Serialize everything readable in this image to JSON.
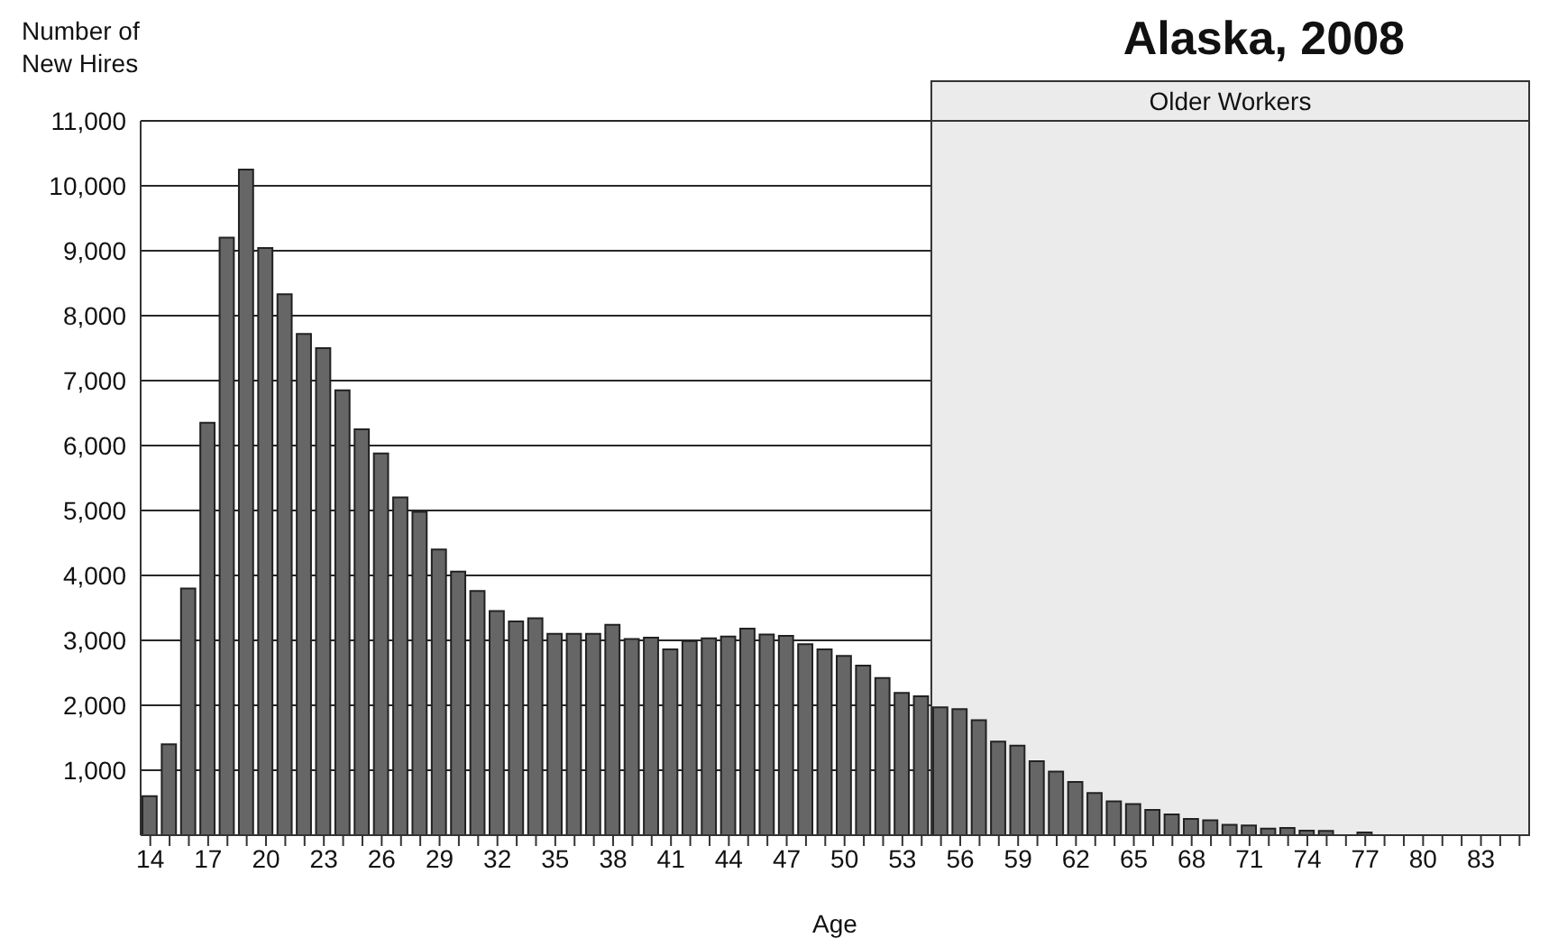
{
  "chart_data": {
    "type": "bar",
    "title": "Alaska, 2008",
    "ylabel": "Number of New Hires",
    "xlabel": "Age",
    "x": [
      14,
      15,
      16,
      17,
      18,
      19,
      20,
      21,
      22,
      23,
      24,
      25,
      26,
      27,
      28,
      29,
      30,
      31,
      32,
      33,
      34,
      35,
      36,
      37,
      38,
      39,
      40,
      41,
      42,
      43,
      44,
      45,
      46,
      47,
      48,
      49,
      50,
      51,
      52,
      53,
      54,
      55,
      56,
      57,
      58,
      59,
      60,
      61,
      62,
      63,
      64,
      65,
      66,
      67,
      68,
      69,
      70,
      71,
      72,
      73,
      74,
      75,
      76,
      77,
      78,
      79,
      80,
      81,
      82,
      83,
      84,
      85
    ],
    "values": [
      600,
      1400,
      3800,
      6350,
      9200,
      10250,
      9040,
      8330,
      7720,
      7500,
      6850,
      6250,
      5880,
      5200,
      4980,
      4400,
      4060,
      3760,
      3450,
      3290,
      3340,
      3100,
      3100,
      3100,
      3240,
      3020,
      3040,
      2860,
      2990,
      3030,
      3060,
      3180,
      3090,
      3070,
      2940,
      2860,
      2760,
      2610,
      2420,
      2190,
      2140,
      1970,
      1940,
      1770,
      1440,
      1380,
      1140,
      980,
      820,
      650,
      520,
      480,
      390,
      320,
      250,
      230,
      160,
      150,
      100,
      110,
      70,
      65,
      0,
      40,
      0,
      0,
      0,
      0,
      0,
      0,
      0,
      0
    ],
    "color": "#666666",
    "xlim": [
      13.5,
      85.5
    ],
    "xticks": [
      14,
      {
        "value": 15,
        "label": null
      },
      {
        "value": 16,
        "label": null
      },
      17,
      {
        "value": 18,
        "label": null
      },
      {
        "value": 19,
        "label": null
      },
      20,
      {
        "value": 21,
        "label": null
      },
      {
        "value": 22,
        "label": null
      },
      23,
      {
        "value": 24,
        "label": null
      },
      {
        "value": 25,
        "label": null
      },
      26,
      {
        "value": 27,
        "label": null
      },
      {
        "value": 28,
        "label": null
      },
      29,
      {
        "value": 30,
        "label": null
      },
      {
        "value": 31,
        "label": null
      },
      32,
      {
        "value": 33,
        "label": null
      },
      {
        "value": 34,
        "label": null
      },
      35,
      {
        "value": 36,
        "label": null
      },
      {
        "value": 37,
        "label": null
      },
      38,
      {
        "value": 39,
        "label": null
      },
      {
        "value": 40,
        "label": null
      },
      41,
      {
        "value": 42,
        "label": null
      },
      {
        "value": 43,
        "label": null
      },
      44,
      {
        "value": 45,
        "label": null
      },
      {
        "value": 46,
        "label": null
      },
      47,
      {
        "value": 48,
        "label": null
      },
      {
        "value": 49,
        "label": null
      },
      50,
      {
        "value": 51,
        "label": null
      },
      {
        "value": 52,
        "label": null
      },
      53,
      {
        "value": 54,
        "label": null
      },
      {
        "value": 55,
        "label": null
      },
      56,
      {
        "value": 57,
        "label": null
      },
      {
        "value": 58,
        "label": null
      },
      59,
      {
        "value": 60,
        "label": null
      },
      {
        "value": 61,
        "label": null
      },
      62,
      {
        "value": 63,
        "label": null
      },
      {
        "value": 64,
        "label": null
      },
      65,
      {
        "value": 66,
        "label": null
      },
      {
        "value": 67,
        "label": null
      },
      68,
      {
        "value": 69,
        "label": null
      },
      {
        "value": 70,
        "label": null
      },
      71,
      {
        "value": 72,
        "label": null
      },
      {
        "value": 73,
        "label": null
      },
      74,
      {
        "value": 75,
        "label": null
      },
      {
        "value": 76,
        "label": null
      },
      77,
      {
        "value": 78,
        "label": null
      },
      {
        "value": 79,
        "label": null
      },
      80,
      {
        "value": 81,
        "label": null
      },
      {
        "value": 82,
        "label": null
      },
      83,
      {
        "value": 84,
        "label": null
      },
      {
        "value": 85,
        "label": null
      }
    ],
    "ylim": [
      0,
      11000
    ],
    "yticks": [
      {
        "value": 1000,
        "label": "1,000"
      },
      {
        "value": 2000,
        "label": "2,000"
      },
      {
        "value": 3000,
        "label": "3,000"
      },
      {
        "value": 4000,
        "label": "4,000"
      },
      {
        "value": 5000,
        "label": "5,000"
      },
      {
        "value": 6000,
        "label": "6,000"
      },
      {
        "value": 7000,
        "label": "7,000"
      },
      {
        "value": 8000,
        "label": "8,000"
      },
      {
        "value": 9000,
        "label": "9,000"
      },
      {
        "value": 10000,
        "label": "10,000"
      },
      {
        "value": 11000,
        "label": "11,000"
      }
    ],
    "grid": "y",
    "bands": [
      {
        "axis": "x",
        "from": 54.5,
        "to": 85.5,
        "label": "Older Workers",
        "color": "#ebebeb"
      }
    ]
  }
}
